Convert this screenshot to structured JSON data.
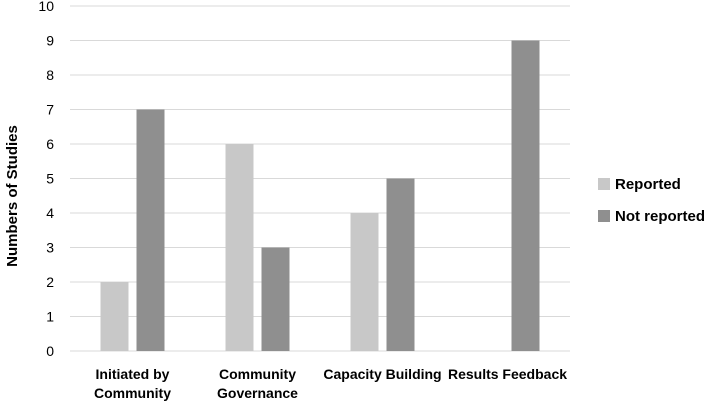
{
  "chart_data": {
    "type": "bar",
    "title": "",
    "xlabel": "",
    "ylabel": "Numbers of Studies",
    "ylim": [
      0,
      10
    ],
    "ytick_step": 1,
    "grid": "horizontal",
    "legend_position": "right",
    "categories": [
      [
        "Initiated by",
        "Community"
      ],
      [
        "Community",
        "Governance"
      ],
      [
        "Capacity Building"
      ],
      [
        "Results Feedback"
      ]
    ],
    "series": [
      {
        "name": "Reported",
        "color": "#c8c8c8",
        "values": [
          2,
          6,
          4,
          0
        ]
      },
      {
        "name": "Not reported",
        "color": "#8f8f8f",
        "values": [
          7,
          3,
          5,
          9
        ]
      }
    ]
  }
}
